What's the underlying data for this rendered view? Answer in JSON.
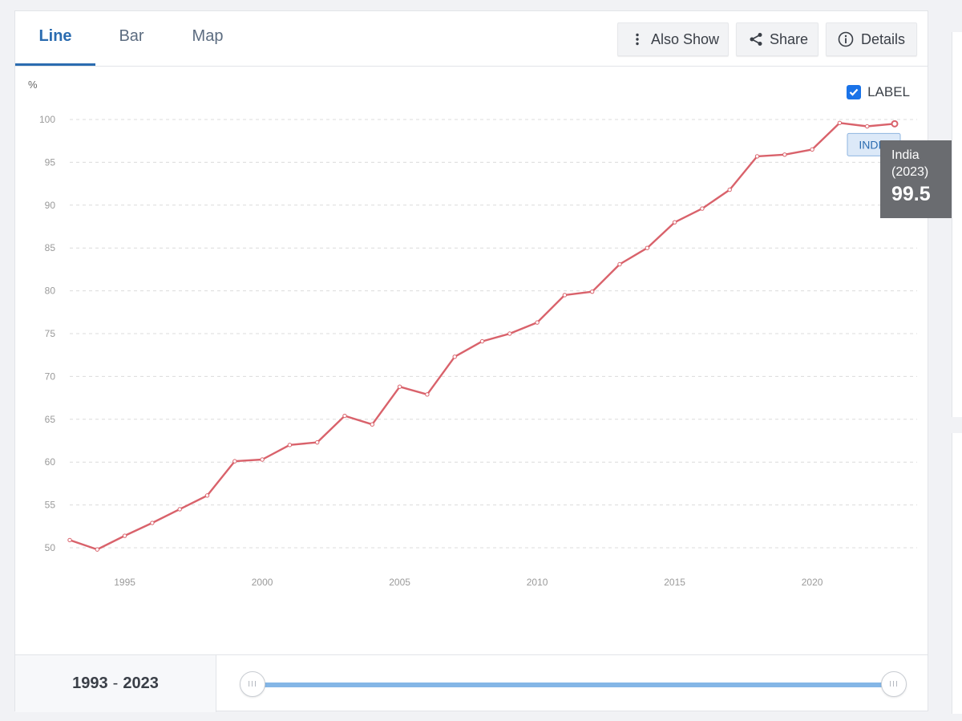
{
  "tabs": [
    {
      "label": "Line",
      "active": true
    },
    {
      "label": "Bar",
      "active": false
    },
    {
      "label": "Map",
      "active": false
    }
  ],
  "toolbar": {
    "also_show": {
      "label": "Also Show",
      "icon": "vertical-dots-icon"
    },
    "share": {
      "label": "Share",
      "icon": "share-icon"
    },
    "details": {
      "label": "Details",
      "icon": "info-icon"
    }
  },
  "label_toggle": {
    "label": "LABEL",
    "checked": true,
    "color": "#1a73e8"
  },
  "chart_data": {
    "type": "line",
    "ylabel": "%",
    "ylim": [
      48,
      101
    ],
    "xlim": [
      1993,
      2023
    ],
    "y_ticks": [
      50,
      55,
      60,
      65,
      70,
      75,
      80,
      85,
      90,
      95,
      100
    ],
    "x_ticks": [
      1995,
      2000,
      2005,
      2010,
      2015,
      2020
    ],
    "grid": true,
    "series": [
      {
        "name": "INDIA",
        "color": "#d9626b",
        "x": [
          1993,
          1994,
          1995,
          1996,
          1997,
          1998,
          1999,
          2000,
          2001,
          2002,
          2003,
          2004,
          2005,
          2006,
          2007,
          2008,
          2009,
          2010,
          2011,
          2012,
          2013,
          2014,
          2015,
          2016,
          2017,
          2018,
          2019,
          2020,
          2021,
          2022,
          2023
        ],
        "y": [
          50.9,
          49.8,
          51.4,
          52.9,
          54.5,
          56.1,
          60.1,
          60.3,
          62.0,
          62.3,
          65.4,
          64.4,
          68.8,
          67.9,
          72.3,
          74.1,
          75.0,
          76.3,
          79.5,
          79.9,
          83.1,
          85.0,
          88.0,
          89.6,
          91.8,
          95.7,
          95.9,
          96.5,
          99.6,
          99.2,
          99.5
        ]
      }
    ]
  },
  "series_label": "INDIA",
  "tooltip": {
    "name": "India",
    "year": "(2023)",
    "value": "99.5"
  },
  "range": {
    "start": "1993",
    "separator": "-",
    "end": "2023"
  },
  "slider": {
    "start": 1993,
    "end": 2023
  }
}
